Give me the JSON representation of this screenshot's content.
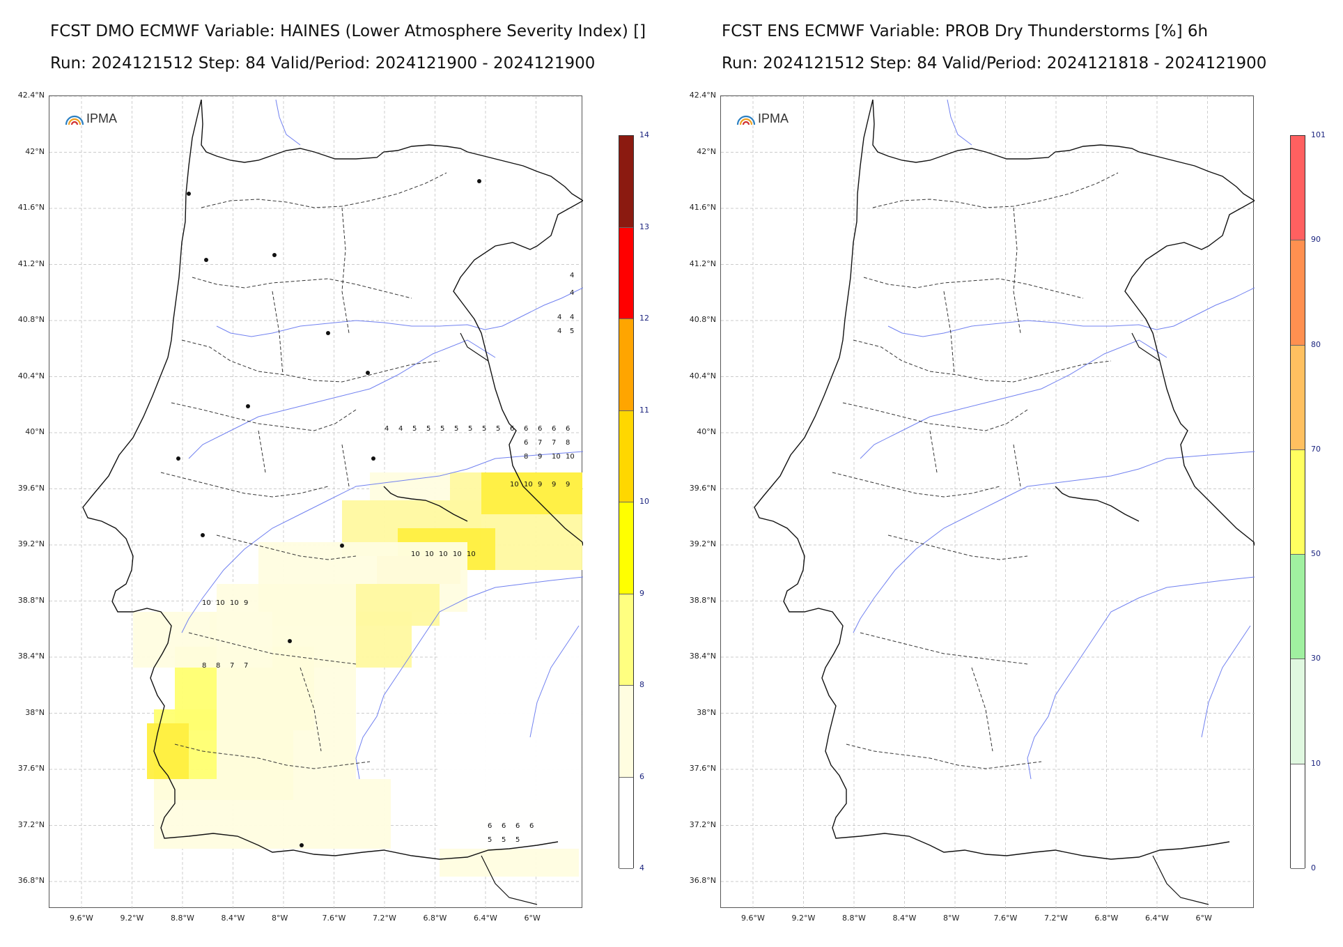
{
  "left": {
    "title_line1": "FCST DMO ECMWF Variable: HAINES (Lower Atmosphere Severity Index) []",
    "title_line2": "Run: 2024121512 Step: 84 Valid/Period: 2024121900 - 2024121900",
    "logo_text": "IPMA",
    "lat_labels": [
      "42.4°N",
      "42°N",
      "41.6°N",
      "41.2°N",
      "40.8°N",
      "40.4°N",
      "40°N",
      "39.6°N",
      "39.2°N",
      "38.8°N",
      "38.4°N",
      "38°N",
      "37.6°N",
      "37.2°N",
      "36.8°N"
    ],
    "lon_labels": [
      "9.6°W",
      "9.2°W",
      "8.8°W",
      "8.4°W",
      "8°W",
      "7.6°W",
      "7.2°W",
      "6.8°W",
      "6.4°W",
      "6°W"
    ],
    "colorbar": {
      "labels": [
        "14",
        "13",
        "12",
        "11",
        "10",
        "9",
        "8",
        "6",
        "4"
      ],
      "colors": [
        "#8b1a10",
        "#ff0000",
        "#ffa500",
        "#ffd700",
        "#ffff00",
        "#ffff80",
        "#fffde0",
        "#ffffff"
      ]
    },
    "grid_values": [
      "4",
      "4",
      "4",
      "4",
      "4",
      "5",
      "4",
      "4",
      "5",
      "5",
      "5",
      "5",
      "5",
      "5",
      "5",
      "6",
      "6",
      "6",
      "6",
      "6",
      "6",
      "7",
      "7",
      "8",
      "8",
      "9",
      "10",
      "10",
      "10",
      "10",
      "9",
      "9",
      "9",
      "10",
      "10",
      "10",
      "10",
      "10",
      "10",
      "10",
      "10",
      "9",
      "8",
      "8",
      "7",
      "7",
      "6",
      "6",
      "6",
      "6",
      "5",
      "5",
      "5"
    ]
  },
  "right": {
    "title_line1": "FCST ENS ECMWF Variable: PROB Dry Thunderstorms [%] 6h",
    "title_line2": "Run: 2024121512 Step: 84 Valid/Period: 2024121818 - 2024121900",
    "logo_text": "IPMA",
    "lat_labels": [
      "42.4°N",
      "42°N",
      "41.6°N",
      "41.2°N",
      "40.8°N",
      "40.4°N",
      "40°N",
      "39.6°N",
      "39.2°N",
      "38.8°N",
      "38.4°N",
      "38°N",
      "37.6°N",
      "37.2°N",
      "36.8°N"
    ],
    "lon_labels": [
      "9.6°W",
      "9.2°W",
      "8.8°W",
      "8.4°W",
      "8°W",
      "7.6°W",
      "7.2°W",
      "6.8°W",
      "6.4°W",
      "6°W"
    ],
    "colorbar": {
      "labels": [
        "101",
        "90",
        "80",
        "70",
        "50",
        "30",
        "10",
        "0"
      ],
      "colors": [
        "#ff6060",
        "#ff9050",
        "#ffc060",
        "#ffff60",
        "#a0f0a0",
        "#e0f8e0",
        "#ffffff"
      ]
    }
  }
}
